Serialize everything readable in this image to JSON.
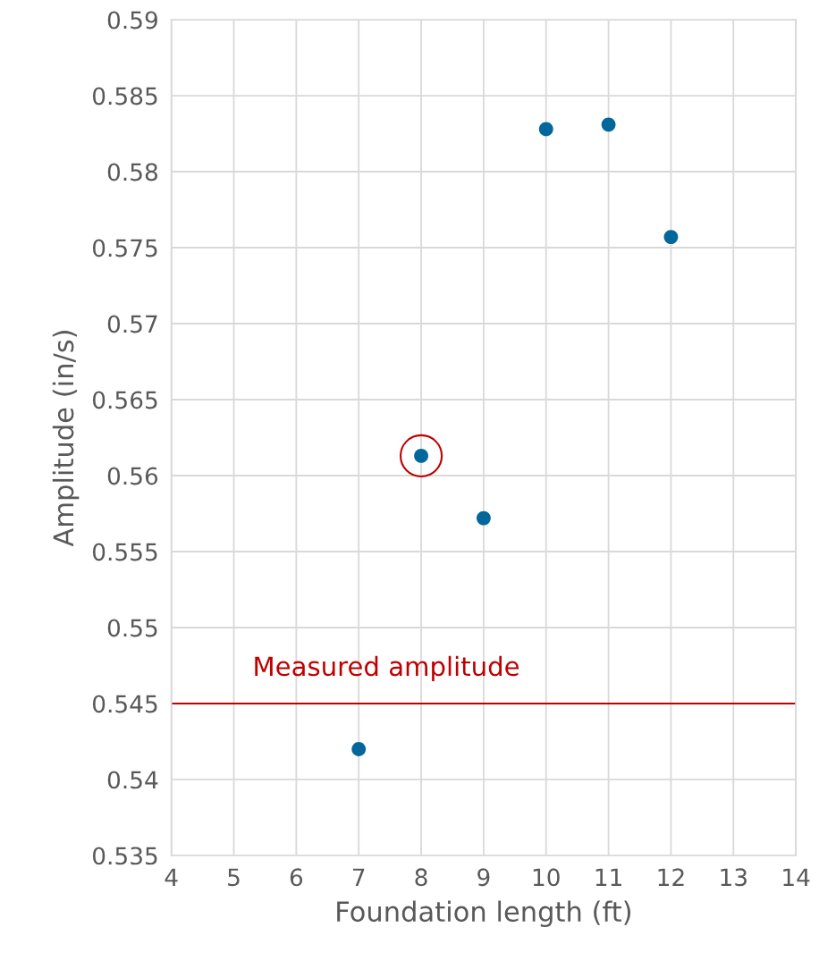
{
  "chart_data": {
    "type": "scatter",
    "xlabel": "Foundation length (ft)",
    "ylabel": "Amplitude (in/s)",
    "series": [
      {
        "x": [
          7,
          8,
          9,
          10,
          11,
          12
        ],
        "values": [
          0.542,
          0.5613,
          0.5572,
          0.5828,
          0.5831,
          0.5757
        ],
        "color": "#03679b"
      },
      {
        "type": "scatter",
        "marker": "circle",
        "x": [
          8
        ],
        "values": [
          0.5613
        ],
        "color": "#c00000"
      }
    ],
    "xlim": [
      4,
      14
    ],
    "xticks": [
      4,
      5,
      6,
      7,
      8,
      9,
      10,
      11,
      12,
      13,
      14
    ],
    "ylim": [
      0.535,
      0.59
    ],
    "yticks": [
      0.535,
      0.54,
      0.545,
      0.55,
      0.555,
      0.56,
      0.565,
      0.57,
      0.575,
      0.58,
      0.585,
      0.59
    ],
    "grid": true,
    "marker": "circle",
    "ref_lines": [
      {
        "axis": "y",
        "value": 0.545,
        "label": "Measured amplitude",
        "color": "#c00000"
      }
    ]
  }
}
